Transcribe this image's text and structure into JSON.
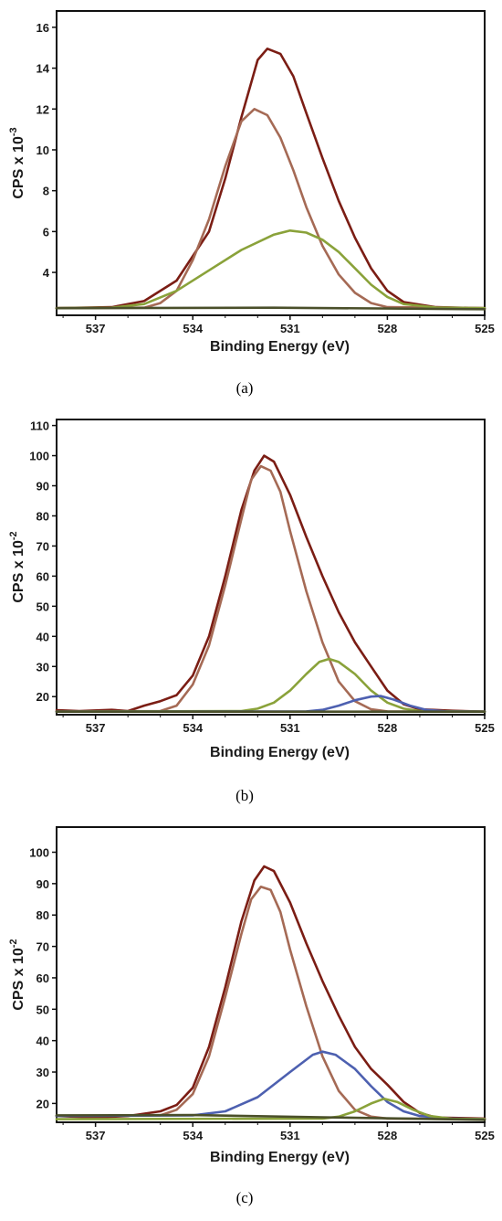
{
  "chart_data": [
    {
      "type": "line",
      "panel_label": "(a)",
      "xlabel": "Binding Energy (eV)",
      "ylabel": "CPS x 10",
      "ylabel_exp": "-3",
      "xlim": [
        538.2,
        525
      ],
      "ylim": [
        1.9,
        16.8
      ],
      "x_reversed": true,
      "xticks": [
        537,
        534,
        531,
        528,
        525
      ],
      "yticks": [
        4,
        6,
        8,
        10,
        12,
        14,
        16
      ],
      "series": [
        {
          "color": "#7b1d14",
          "points": [
            [
              538.2,
              2.25
            ],
            [
              536.5,
              2.3
            ],
            [
              535.5,
              2.6
            ],
            [
              534.5,
              3.6
            ],
            [
              533.5,
              6.0
            ],
            [
              533.0,
              8.6
            ],
            [
              532.5,
              11.6
            ],
            [
              532.0,
              14.4
            ],
            [
              531.7,
              14.95
            ],
            [
              531.3,
              14.7
            ],
            [
              530.9,
              13.6
            ],
            [
              530.5,
              11.8
            ],
            [
              530.0,
              9.6
            ],
            [
              529.5,
              7.5
            ],
            [
              529.0,
              5.7
            ],
            [
              528.5,
              4.2
            ],
            [
              528.0,
              3.1
            ],
            [
              527.5,
              2.55
            ],
            [
              526.5,
              2.3
            ],
            [
              525,
              2.25
            ]
          ]
        },
        {
          "color": "#a56a55",
          "points": [
            [
              538.2,
              2.25
            ],
            [
              535.5,
              2.27
            ],
            [
              535.0,
              2.5
            ],
            [
              534.5,
              3.1
            ],
            [
              534.0,
              4.6
            ],
            [
              533.5,
              6.6
            ],
            [
              533.0,
              9.2
            ],
            [
              532.5,
              11.4
            ],
            [
              532.1,
              12.0
            ],
            [
              531.7,
              11.7
            ],
            [
              531.3,
              10.6
            ],
            [
              530.9,
              9.0
            ],
            [
              530.5,
              7.2
            ],
            [
              530.0,
              5.3
            ],
            [
              529.5,
              3.9
            ],
            [
              529.0,
              3.0
            ],
            [
              528.5,
              2.5
            ],
            [
              528.0,
              2.3
            ],
            [
              525,
              2.25
            ]
          ]
        },
        {
          "color": "#8aa23a",
          "points": [
            [
              538.2,
              2.25
            ],
            [
              536.5,
              2.27
            ],
            [
              535.5,
              2.45
            ],
            [
              534.5,
              3.1
            ],
            [
              533.5,
              4.1
            ],
            [
              532.5,
              5.1
            ],
            [
              531.5,
              5.85
            ],
            [
              531.0,
              6.05
            ],
            [
              530.5,
              5.95
            ],
            [
              530.0,
              5.6
            ],
            [
              529.5,
              5.0
            ],
            [
              529.0,
              4.2
            ],
            [
              528.5,
              3.4
            ],
            [
              528.0,
              2.8
            ],
            [
              527.5,
              2.45
            ],
            [
              526.5,
              2.28
            ],
            [
              525,
              2.25
            ]
          ]
        },
        {
          "color": "#4a4f2a",
          "points": [
            [
              538.2,
              2.25
            ],
            [
              531.5,
              2.27
            ],
            [
              525,
              2.2
            ]
          ]
        }
      ]
    },
    {
      "type": "line",
      "panel_label": "(b)",
      "xlabel": "Binding Energy (eV)",
      "ylabel": "CPS x 10",
      "ylabel_exp": "-2",
      "xlim": [
        538.2,
        525
      ],
      "ylim": [
        14,
        112
      ],
      "x_reversed": true,
      "xticks": [
        537,
        534,
        531,
        528,
        525
      ],
      "yticks": [
        20,
        30,
        40,
        50,
        60,
        70,
        80,
        90,
        100,
        110
      ],
      "series": [
        {
          "color": "#7b1d14",
          "points": [
            [
              538.2,
              15.5
            ],
            [
              537.5,
              15.2
            ],
            [
              536.5,
              15.6
            ],
            [
              536.0,
              15.2
            ],
            [
              535.5,
              17.0
            ],
            [
              535.0,
              18.5
            ],
            [
              534.5,
              20.5
            ],
            [
              534.0,
              27.0
            ],
            [
              533.5,
              40.0
            ],
            [
              533.0,
              60.0
            ],
            [
              532.5,
              82.0
            ],
            [
              532.1,
              95.0
            ],
            [
              531.8,
              100.0
            ],
            [
              531.5,
              98.0
            ],
            [
              531.0,
              87.0
            ],
            [
              530.5,
              73.0
            ],
            [
              530.0,
              60.0
            ],
            [
              529.5,
              48.0
            ],
            [
              529.0,
              38.0
            ],
            [
              528.5,
              30.0
            ],
            [
              528.0,
              22.0
            ],
            [
              527.5,
              17.5
            ],
            [
              527.0,
              15.8
            ],
            [
              526.0,
              15.3
            ],
            [
              525,
              15.0
            ]
          ]
        },
        {
          "color": "#a56a55",
          "points": [
            [
              538.2,
              15.0
            ],
            [
              535.0,
              15.2
            ],
            [
              534.5,
              17.0
            ],
            [
              534.0,
              24.0
            ],
            [
              533.5,
              37.0
            ],
            [
              533.0,
              57.0
            ],
            [
              532.5,
              79.0
            ],
            [
              532.2,
              92.0
            ],
            [
              531.9,
              96.5
            ],
            [
              531.6,
              95.0
            ],
            [
              531.3,
              88.0
            ],
            [
              531.0,
              75.0
            ],
            [
              530.5,
              55.0
            ],
            [
              530.0,
              38.0
            ],
            [
              529.5,
              25.0
            ],
            [
              529.0,
              18.5
            ],
            [
              528.5,
              15.8
            ],
            [
              528.0,
              15.1
            ],
            [
              525,
              15.0
            ]
          ]
        },
        {
          "color": "#8aa23a",
          "points": [
            [
              538.2,
              15.0
            ],
            [
              532.5,
              15.2
            ],
            [
              532.0,
              16.0
            ],
            [
              531.5,
              18.0
            ],
            [
              531.0,
              22.0
            ],
            [
              530.5,
              27.5
            ],
            [
              530.1,
              31.5
            ],
            [
              529.8,
              32.5
            ],
            [
              529.5,
              31.5
            ],
            [
              529.0,
              27.5
            ],
            [
              528.5,
              22.0
            ],
            [
              528.0,
              18.0
            ],
            [
              527.5,
              16.0
            ],
            [
              527.0,
              15.2
            ],
            [
              525,
              15.0
            ]
          ]
        },
        {
          "color": "#4d60b0",
          "points": [
            [
              538.2,
              15.0
            ],
            [
              530.5,
              15.1
            ],
            [
              530.0,
              15.6
            ],
            [
              529.5,
              17.0
            ],
            [
              529.0,
              18.8
            ],
            [
              528.5,
              20.0
            ],
            [
              528.2,
              20.2
            ],
            [
              527.8,
              19.0
            ],
            [
              527.3,
              17.0
            ],
            [
              526.8,
              15.6
            ],
            [
              526.2,
              15.1
            ],
            [
              525,
              15.0
            ]
          ]
        },
        {
          "color": "#4a4f2a",
          "points": [
            [
              538.2,
              15.0
            ],
            [
              525,
              15.0
            ]
          ]
        }
      ]
    },
    {
      "type": "line",
      "panel_label": "(c)",
      "xlabel": "Binding Energy (eV)",
      "ylabel": "CPS x 10",
      "ylabel_exp": "-2",
      "xlim": [
        538.2,
        525
      ],
      "ylim": [
        14,
        108
      ],
      "x_reversed": true,
      "xticks": [
        537,
        534,
        531,
        528,
        525
      ],
      "yticks": [
        20,
        30,
        40,
        50,
        60,
        70,
        80,
        90,
        100
      ],
      "series": [
        {
          "color": "#7b1d14",
          "points": [
            [
              538.2,
              16.0
            ],
            [
              537.0,
              15.5
            ],
            [
              536.0,
              16.0
            ],
            [
              535.0,
              17.5
            ],
            [
              534.5,
              19.5
            ],
            [
              534.0,
              25.0
            ],
            [
              533.5,
              38.0
            ],
            [
              533.0,
              57.0
            ],
            [
              532.5,
              78.0
            ],
            [
              532.1,
              91.0
            ],
            [
              531.8,
              95.5
            ],
            [
              531.5,
              94.0
            ],
            [
              531.0,
              84.0
            ],
            [
              530.5,
              71.0
            ],
            [
              530.0,
              59.0
            ],
            [
              529.5,
              48.0
            ],
            [
              529.0,
              38.0
            ],
            [
              528.5,
              31.0
            ],
            [
              528.0,
              26.0
            ],
            [
              527.5,
              20.5
            ],
            [
              527.0,
              17.0
            ],
            [
              526.5,
              15.5
            ],
            [
              525,
              15.2
            ]
          ]
        },
        {
          "color": "#a56a55",
          "points": [
            [
              538.2,
              16.0
            ],
            [
              535.0,
              16.2
            ],
            [
              534.5,
              18.0
            ],
            [
              534.0,
              23.0
            ],
            [
              533.5,
              35.0
            ],
            [
              533.0,
              54.0
            ],
            [
              532.5,
              74.0
            ],
            [
              532.2,
              85.0
            ],
            [
              531.9,
              89.0
            ],
            [
              531.6,
              88.0
            ],
            [
              531.3,
              81.0
            ],
            [
              531.0,
              69.0
            ],
            [
              530.5,
              51.0
            ],
            [
              530.0,
              35.0
            ],
            [
              529.5,
              24.0
            ],
            [
              529.0,
              18.0
            ],
            [
              528.5,
              15.8
            ],
            [
              528.0,
              15.2
            ],
            [
              525,
              15.0
            ]
          ]
        },
        {
          "color": "#4d60b0",
          "points": [
            [
              538.2,
              16.0
            ],
            [
              534.0,
              16.2
            ],
            [
              533.0,
              17.5
            ],
            [
              532.0,
              22.0
            ],
            [
              531.0,
              30.0
            ],
            [
              530.3,
              35.5
            ],
            [
              530.0,
              36.5
            ],
            [
              529.6,
              35.5
            ],
            [
              529.0,
              31.0
            ],
            [
              528.5,
              25.5
            ],
            [
              528.0,
              20.5
            ],
            [
              527.5,
              17.5
            ],
            [
              527.0,
              16.0
            ],
            [
              526.0,
              15.2
            ],
            [
              525,
              15.0
            ]
          ]
        },
        {
          "color": "#8aa23a",
          "points": [
            [
              538.2,
              15.0
            ],
            [
              530.0,
              15.2
            ],
            [
              529.5,
              15.8
            ],
            [
              529.0,
              17.5
            ],
            [
              528.5,
              20.0
            ],
            [
              528.1,
              21.5
            ],
            [
              527.7,
              20.5
            ],
            [
              527.2,
              18.0
            ],
            [
              526.7,
              16.0
            ],
            [
              526.0,
              15.1
            ],
            [
              525,
              15.0
            ]
          ]
        },
        {
          "color": "#4a4f2a",
          "points": [
            [
              538.2,
              16.2
            ],
            [
              534.0,
              16.3
            ],
            [
              530.0,
              15.6
            ],
            [
              527.0,
              15.1
            ],
            [
              525,
              14.8
            ]
          ]
        }
      ]
    }
  ]
}
